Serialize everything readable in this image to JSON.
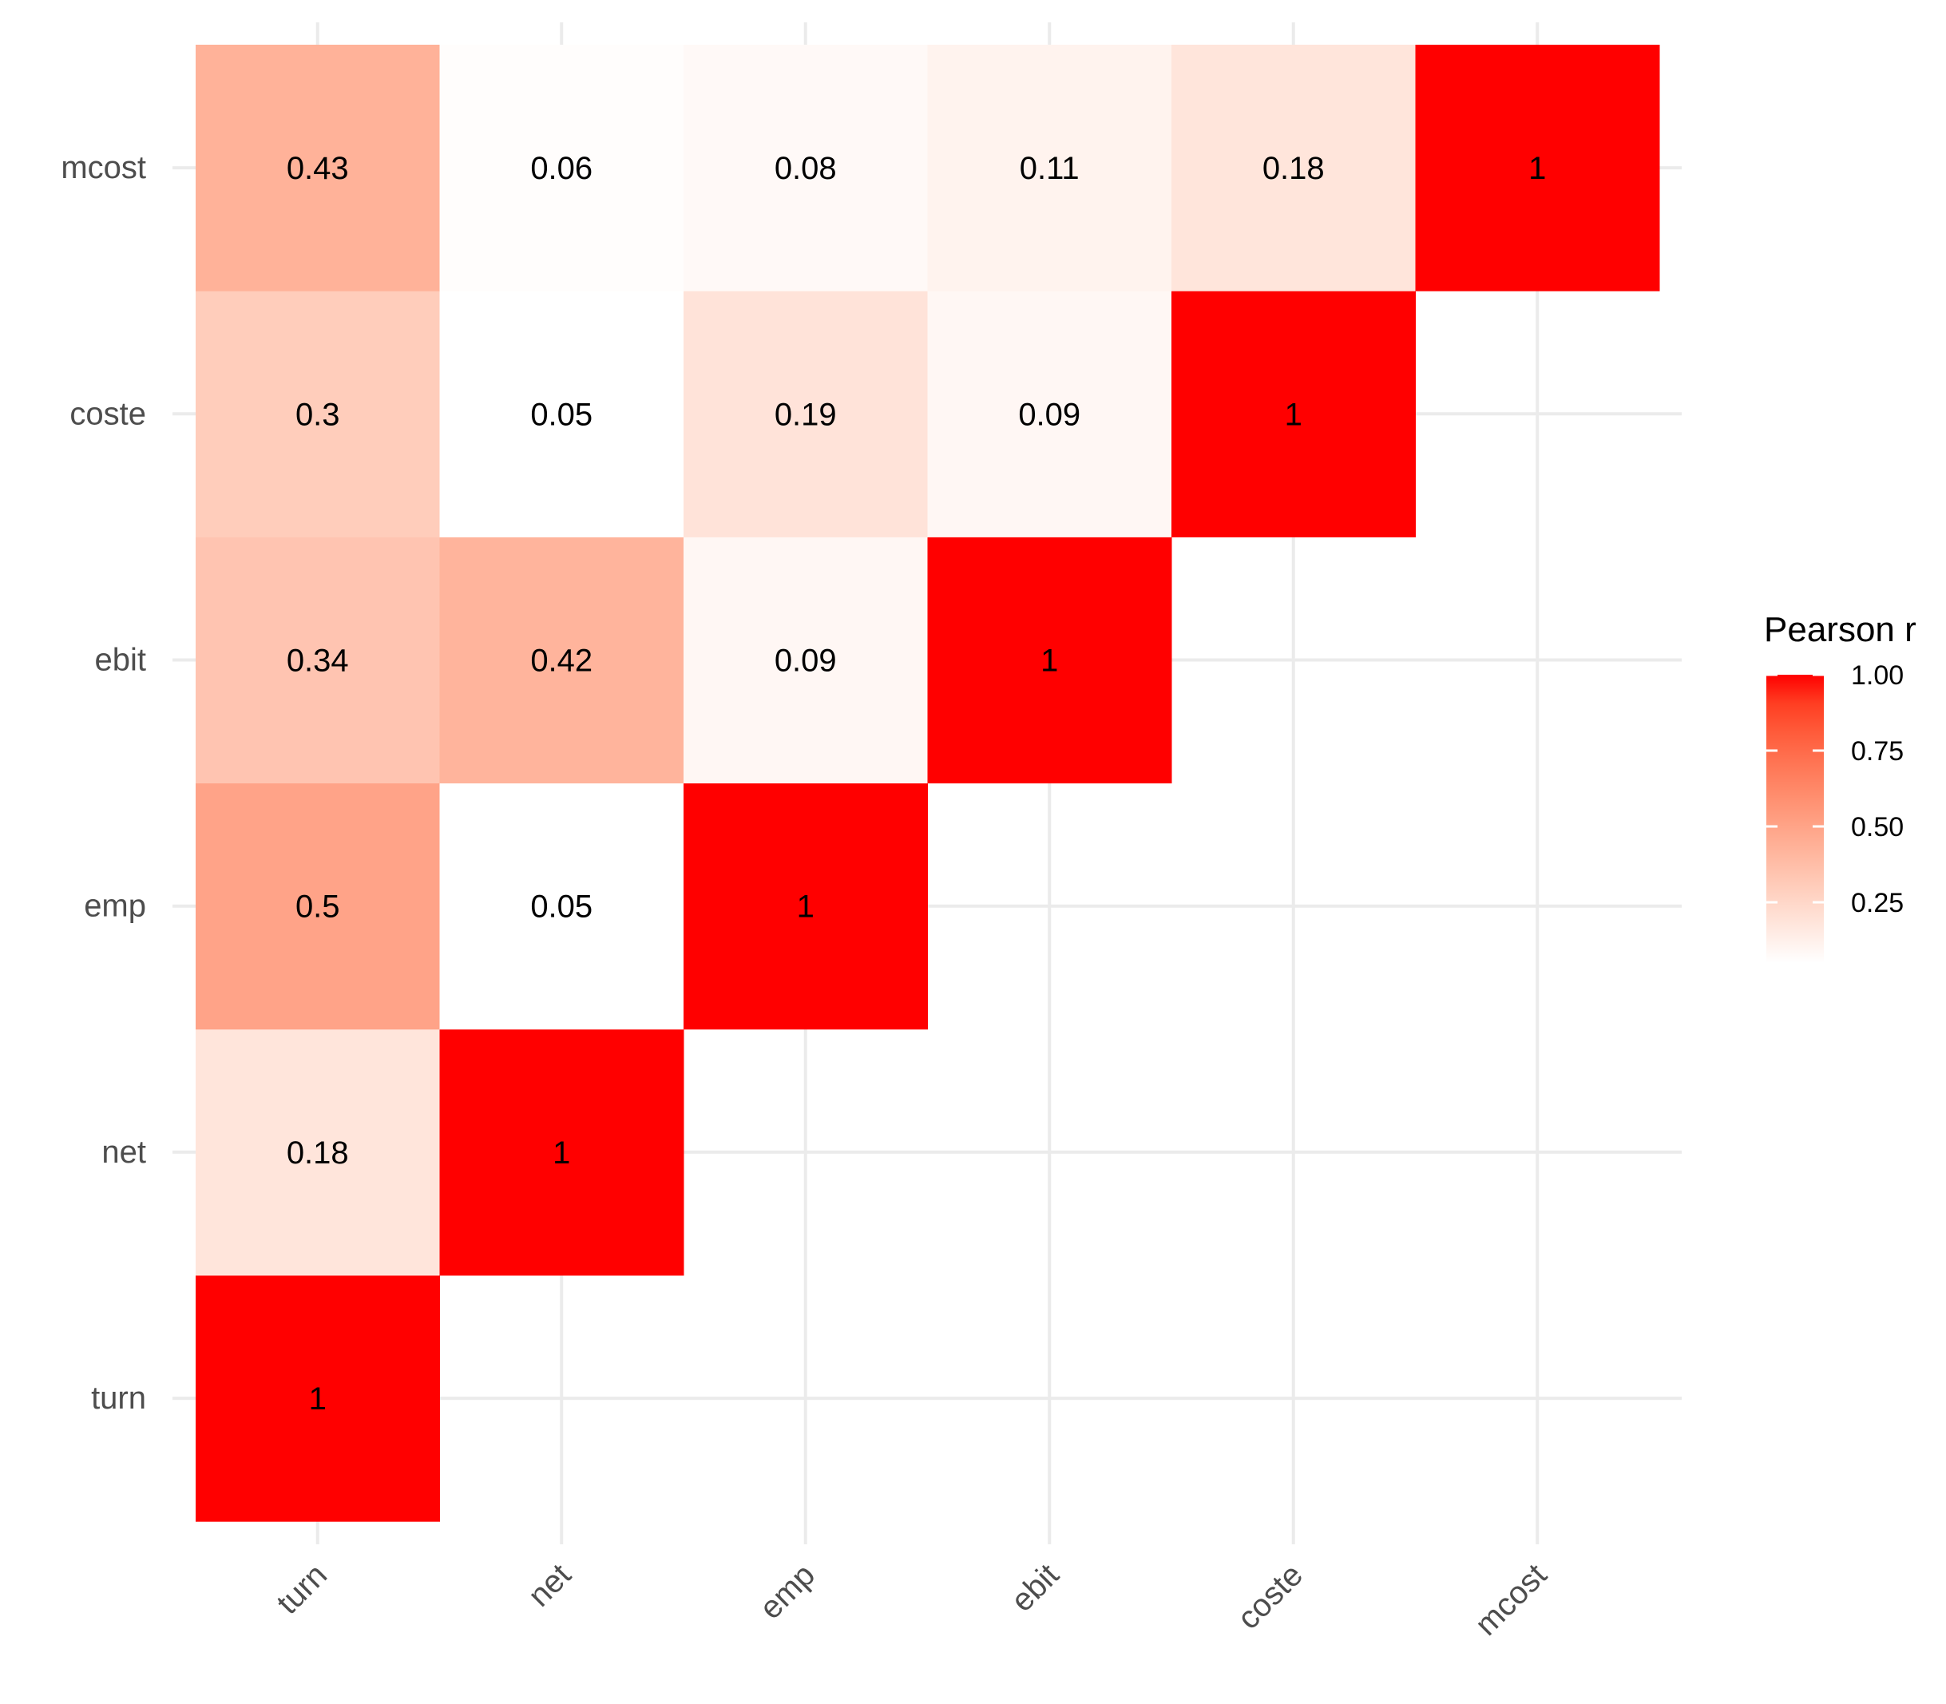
{
  "chart_data": {
    "type": "heatmap",
    "title": "",
    "xlabel": "",
    "ylabel": "",
    "x_categories": [
      "turn",
      "net",
      "emp",
      "ebit",
      "coste",
      "mcost"
    ],
    "y_categories": [
      "turn",
      "net",
      "emp",
      "ebit",
      "coste",
      "mcost"
    ],
    "cells": [
      {
        "x": "turn",
        "y": "turn",
        "value": 1,
        "label": "1"
      },
      {
        "x": "turn",
        "y": "net",
        "value": 0.18,
        "label": "0.18"
      },
      {
        "x": "net",
        "y": "net",
        "value": 1,
        "label": "1"
      },
      {
        "x": "turn",
        "y": "emp",
        "value": 0.5,
        "label": "0.5"
      },
      {
        "x": "net",
        "y": "emp",
        "value": 0.05,
        "label": "0.05"
      },
      {
        "x": "emp",
        "y": "emp",
        "value": 1,
        "label": "1"
      },
      {
        "x": "turn",
        "y": "ebit",
        "value": 0.34,
        "label": "0.34"
      },
      {
        "x": "net",
        "y": "ebit",
        "value": 0.42,
        "label": "0.42"
      },
      {
        "x": "emp",
        "y": "ebit",
        "value": 0.09,
        "label": "0.09"
      },
      {
        "x": "ebit",
        "y": "ebit",
        "value": 1,
        "label": "1"
      },
      {
        "x": "turn",
        "y": "coste",
        "value": 0.3,
        "label": "0.3"
      },
      {
        "x": "net",
        "y": "coste",
        "value": 0.05,
        "label": "0.05"
      },
      {
        "x": "emp",
        "y": "coste",
        "value": 0.19,
        "label": "0.19"
      },
      {
        "x": "ebit",
        "y": "coste",
        "value": 0.09,
        "label": "0.09"
      },
      {
        "x": "coste",
        "y": "coste",
        "value": 1,
        "label": "1"
      },
      {
        "x": "turn",
        "y": "mcost",
        "value": 0.43,
        "label": "0.43"
      },
      {
        "x": "net",
        "y": "mcost",
        "value": 0.06,
        "label": "0.06"
      },
      {
        "x": "emp",
        "y": "mcost",
        "value": 0.08,
        "label": "0.08"
      },
      {
        "x": "ebit",
        "y": "mcost",
        "value": 0.11,
        "label": "0.11"
      },
      {
        "x": "coste",
        "y": "mcost",
        "value": 0.18,
        "label": "0.18"
      },
      {
        "x": "mcost",
        "y": "mcost",
        "value": 1,
        "label": "1"
      }
    ],
    "color_scale": {
      "low": "#ffffff",
      "high": "#ff0000",
      "limits": [
        0.05,
        1
      ]
    },
    "legend": {
      "title": "Pearson r",
      "position": "right",
      "ticks": [
        1.0,
        0.75,
        0.5,
        0.25
      ],
      "tick_labels": [
        "1.00",
        "0.75",
        "0.50",
        "0.25"
      ]
    },
    "grid": true,
    "x_tick_rotation_deg": 45
  }
}
